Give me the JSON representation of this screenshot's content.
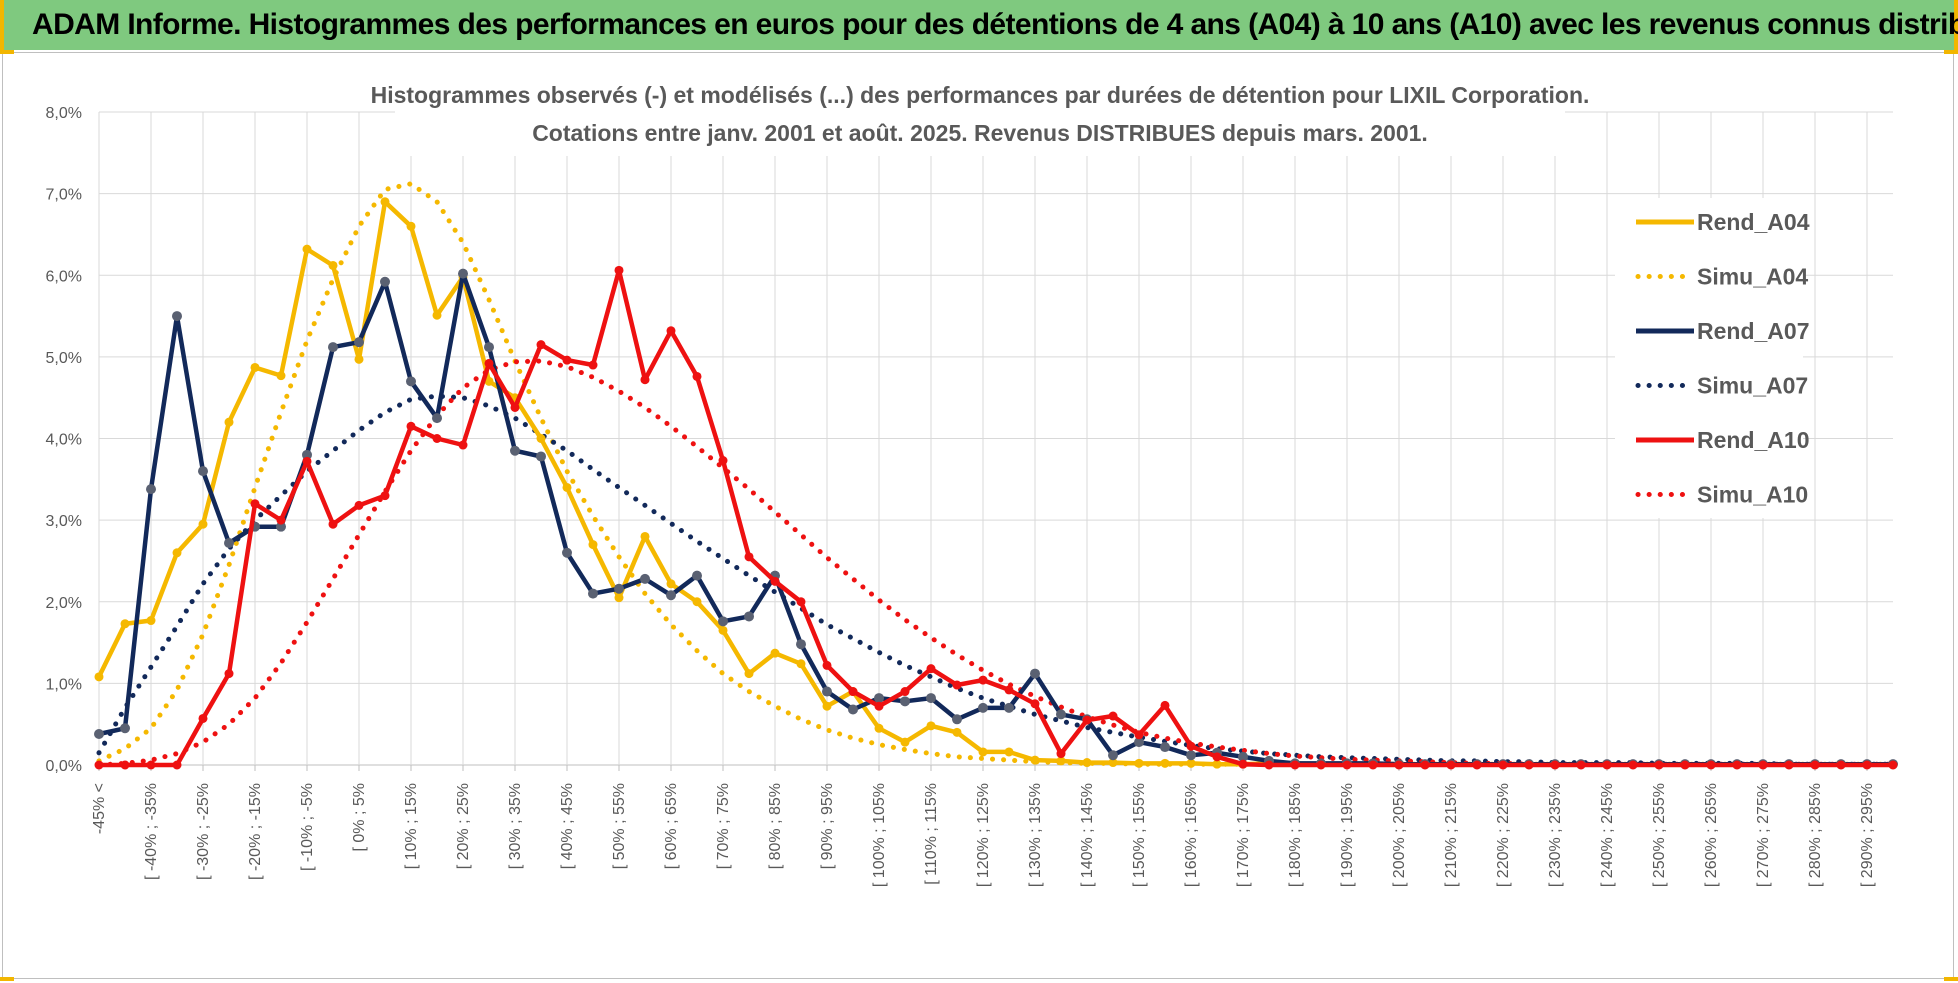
{
  "banner": {
    "title": "ADAM Informe. Histogrammes des performances en euros pour des détentions de 4 ans (A04) à 10 ans (A10) avec les revenus connus distribués"
  },
  "colors": {
    "banner_bg": "#7fc97f",
    "accent": "#f2b600",
    "A04": "#f5b800",
    "A07": "#12295a",
    "A10": "#ee1111"
  },
  "chart_data": {
    "type": "line",
    "title": "Histogrammes observés (-) et modélisés (...) des performances par durées de détention pour LIXIL Corporation.",
    "subtitle": "Cotations entre janv. 2001 et août. 2025. Revenus DISTRIBUES depuis mars. 2001.",
    "xlabel": "",
    "ylabel": "",
    "ylim": [
      0,
      0.08
    ],
    "y_ticks": [
      "0,0%",
      "1,0%",
      "2,0%",
      "3,0%",
      "4,0%",
      "5,0%",
      "6,0%",
      "7,0%",
      "8,0%"
    ],
    "grid": true,
    "legend_position": "right",
    "x_labels": [
      "-45% <",
      "[ -40% ; -35%",
      "[ -30% ; -25%",
      "[ -20% ; -15%",
      "[ -10% ; -5%",
      "[ 0% ; 5%",
      "[ 10% ; 15%",
      "[ 20% ; 25%",
      "[ 30% ; 35%",
      "[ 40% ; 45%",
      "[ 50% ; 55%",
      "[ 60% ; 65%",
      "[ 70% ; 75%",
      "[ 80% ; 85%",
      "[ 90% ; 95%",
      "[ 100% ; 105%",
      "[ 110% ; 115%",
      "[ 120% ; 125%",
      "[ 130% ; 135%",
      "[ 140% ; 145%",
      "[ 150% ; 155%",
      "[ 160% ; 165%",
      "[ 170% ; 175%",
      "[ 180% ; 185%",
      "[ 190% ; 195%",
      "[ 200% ; 205%",
      "[ 210% ; 215%",
      "[ 220% ; 225%",
      "[ 230% ; 235%",
      "[ 240% ; 245%",
      "[ 250% ; 255%",
      "[ 260% ; 265%",
      "[ 270% ; 275%",
      "[ 280% ; 285%",
      "[ 290% ; 295%"
    ],
    "x_start": -45,
    "x_step": 5,
    "series": [
      {
        "name": "Rend_A04",
        "style": "solid",
        "color": "#f5b800",
        "values": [
          0.0108,
          0.0173,
          0.0177,
          0.026,
          0.0295,
          0.042,
          0.0487,
          0.0477,
          0.0632,
          0.0612,
          0.0497,
          0.069,
          0.066,
          0.0551,
          0.0598,
          0.047,
          0.045,
          0.04,
          0.034,
          0.027,
          0.0205,
          0.028,
          0.0222,
          0.02,
          0.0165,
          0.0112,
          0.0137,
          0.0124,
          0.0072,
          0.009,
          0.0045,
          0.0028,
          0.0048,
          0.004,
          0.0016,
          0.0016,
          0.0006,
          0.0005,
          0.0003,
          0.0003,
          0.0002,
          0.0002,
          0.0002,
          0.0001,
          0.0001,
          0.0002,
          0.0002,
          0.0001,
          0.0001,
          0.0001,
          0.0001,
          0.0001,
          0.0001,
          0.0001,
          0.0001,
          0.0001,
          0.0001,
          0.0001,
          0.0001,
          0.0001,
          0.0001,
          0.0001,
          0.0001,
          0.0001,
          0.0001,
          0.0001,
          0.0001,
          0.0001,
          0.0001,
          0.0001
        ]
      },
      {
        "name": "Simu_A04",
        "style": "dotted",
        "color": "#f5b800",
        "values": [
          0.0005,
          0.002,
          0.0045,
          0.0092,
          0.016,
          0.0245,
          0.034,
          0.0432,
          0.052,
          0.0595,
          0.066,
          0.0705,
          0.0712,
          0.069,
          0.064,
          0.057,
          0.0495,
          0.0425,
          0.036,
          0.0305,
          0.0255,
          0.021,
          0.0172,
          0.014,
          0.0112,
          0.009,
          0.0072,
          0.0056,
          0.0043,
          0.0033,
          0.0025,
          0.0019,
          0.0014,
          0.001,
          0.0008,
          0.0006,
          0.0004,
          0.0003,
          0.0002,
          0.0002,
          0.0001,
          0.0001,
          0.0001,
          0.0001,
          0.0001,
          0.0001,
          0.0001,
          0.0001,
          0.0001,
          0.0001,
          0.0001,
          0.0001,
          0.0001,
          0.0001,
          0.0001,
          0.0001,
          0.0001,
          0.0001,
          0.0001,
          0.0001,
          0.0001,
          0.0001,
          0.0001,
          0.0001,
          0.0001,
          0.0001,
          0.0001,
          0.0001,
          0.0001,
          0.0001
        ]
      },
      {
        "name": "Rend_A07",
        "style": "solid",
        "color": "#12295a",
        "values": [
          0.0038,
          0.0045,
          0.0338,
          0.055,
          0.036,
          0.0272,
          0.0292,
          0.0292,
          0.038,
          0.0512,
          0.0518,
          0.0592,
          0.047,
          0.0425,
          0.0602,
          0.0512,
          0.0385,
          0.0378,
          0.026,
          0.021,
          0.0216,
          0.0228,
          0.0208,
          0.0232,
          0.0176,
          0.0182,
          0.0232,
          0.0148,
          0.009,
          0.0068,
          0.0082,
          0.0078,
          0.0082,
          0.0056,
          0.007,
          0.007,
          0.0112,
          0.0062,
          0.0056,
          0.0012,
          0.0028,
          0.0022,
          0.0012,
          0.0015,
          0.001,
          0.0005,
          0.0002,
          0.0002,
          0.0002,
          0.0002,
          0.0001,
          0.0001,
          0.0001,
          0.0001,
          0.0001,
          0.0001,
          0.0001,
          0.0001,
          0.0001,
          0.0001,
          0.0001,
          0.0001,
          0.0001,
          0.0001,
          0.0001,
          0.0001,
          0.0001,
          0.0001,
          0.0001,
          0.0001
        ]
      },
      {
        "name": "Simu_A07",
        "style": "dotted",
        "color": "#12295a",
        "values": [
          0.0015,
          0.007,
          0.012,
          0.017,
          0.0222,
          0.0265,
          0.03,
          0.033,
          0.036,
          0.0385,
          0.041,
          0.0432,
          0.0448,
          0.0452,
          0.045,
          0.044,
          0.0425,
          0.0405,
          0.0385,
          0.0362,
          0.034,
          0.0318,
          0.0296,
          0.0274,
          0.0253,
          0.0232,
          0.0212,
          0.0192,
          0.0172,
          0.0155,
          0.0138,
          0.0122,
          0.0108,
          0.0094,
          0.0082,
          0.0072,
          0.0062,
          0.0054,
          0.0046,
          0.004,
          0.0034,
          0.0029,
          0.0024,
          0.002,
          0.0017,
          0.0014,
          0.0012,
          0.001,
          0.0009,
          0.0008,
          0.0007,
          0.0006,
          0.0005,
          0.0005,
          0.0004,
          0.0004,
          0.0003,
          0.0003,
          0.0003,
          0.0003,
          0.0002,
          0.0002,
          0.0002,
          0.0002,
          0.0002,
          0.0001,
          0.0001,
          0.0001,
          0.0001,
          0.0001
        ]
      },
      {
        "name": "Rend_A10",
        "style": "solid",
        "color": "#ee1111",
        "values": [
          0.0,
          0.0,
          0.0,
          0.0,
          0.0057,
          0.0112,
          0.032,
          0.03,
          0.0372,
          0.0295,
          0.0318,
          0.033,
          0.0415,
          0.04,
          0.0392,
          0.0492,
          0.0438,
          0.0515,
          0.0496,
          0.049,
          0.0606,
          0.0472,
          0.0532,
          0.0476,
          0.0373,
          0.0255,
          0.0225,
          0.02,
          0.0122,
          0.009,
          0.0072,
          0.009,
          0.0118,
          0.0098,
          0.0104,
          0.0092,
          0.0075,
          0.0014,
          0.0055,
          0.006,
          0.0037,
          0.0073,
          0.0023,
          0.001,
          0.0001,
          0.0,
          0.0,
          0.0,
          0.0,
          0.0,
          0.0,
          0.0,
          0.0,
          0.0,
          0.0,
          0.0,
          0.0,
          0.0,
          0.0,
          0.0,
          0.0,
          0.0,
          0.0,
          0.0,
          0.0,
          0.0,
          0.0,
          0.0,
          0.0,
          0.0
        ]
      },
      {
        "name": "Simu_A10",
        "style": "dotted",
        "color": "#ee1111",
        "values": [
          0.0,
          0.0002,
          0.0006,
          0.0014,
          0.0028,
          0.005,
          0.0082,
          0.0125,
          0.0175,
          0.0228,
          0.0282,
          0.0335,
          0.0385,
          0.0428,
          0.0462,
          0.0484,
          0.0494,
          0.0495,
          0.0488,
          0.0475,
          0.0458,
          0.0438,
          0.0415,
          0.039,
          0.0364,
          0.0338,
          0.031,
          0.0282,
          0.0254,
          0.0228,
          0.0202,
          0.0178,
          0.0156,
          0.0135,
          0.0116,
          0.0099,
          0.0084,
          0.0071,
          0.0059,
          0.0049,
          0.004,
          0.0033,
          0.0027,
          0.0022,
          0.0018,
          0.0014,
          0.0011,
          0.0009,
          0.0007,
          0.0006,
          0.0005,
          0.0004,
          0.0003,
          0.0002,
          0.0002,
          0.0001,
          0.0001,
          0.0001,
          0.0001,
          0.0001,
          0.0001,
          0.0001,
          0.0001,
          0.0001,
          0.0001,
          0.0001,
          0.0001,
          0.0001,
          0.0001,
          0.0001
        ]
      }
    ]
  }
}
